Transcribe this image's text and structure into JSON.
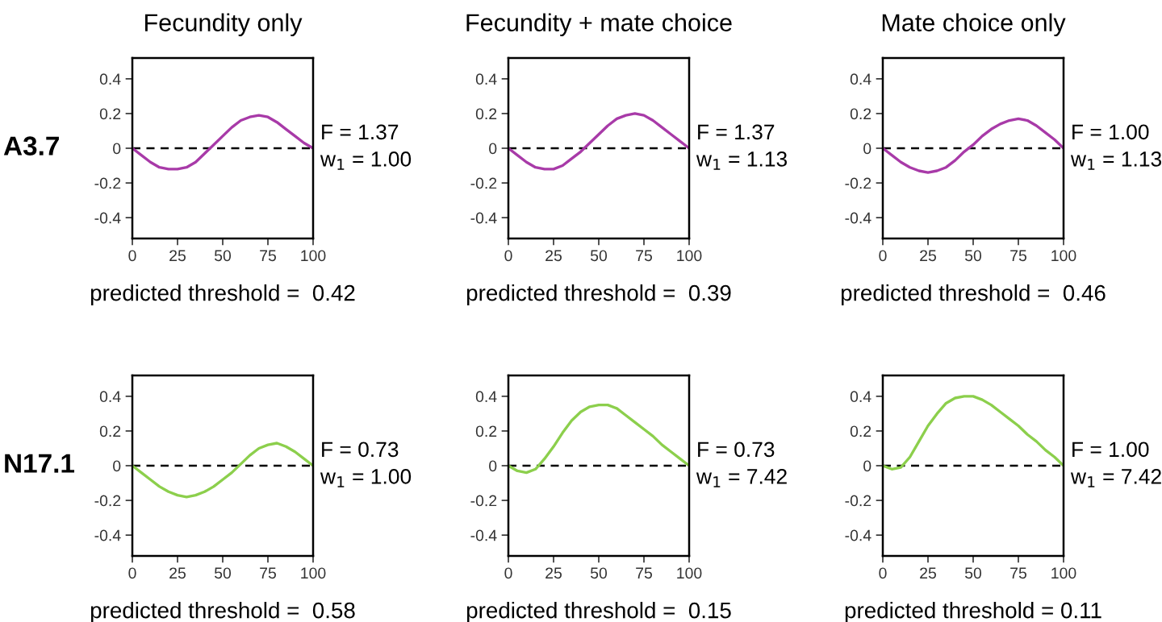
{
  "chart_data": [
    {
      "type": "line",
      "title": "Fecundity only",
      "ylabel": "A3.7",
      "xlabel": "predicted threshold =  0.42",
      "annotations": [
        "F = 1.37",
        "w$_{1}$ = 1.00"
      ],
      "x": [
        0,
        5,
        10,
        15,
        20,
        25,
        30,
        35,
        40,
        45,
        50,
        55,
        60,
        65,
        70,
        75,
        80,
        85,
        90,
        95,
        100
      ],
      "series": [
        {
          "color": "#a83aa8",
          "values": [
            0,
            -0.04,
            -0.08,
            -0.11,
            -0.12,
            -0.12,
            -0.11,
            -0.08,
            -0.03,
            0.02,
            0.07,
            0.12,
            0.16,
            0.18,
            0.19,
            0.18,
            0.15,
            0.11,
            0.07,
            0.03,
            0
          ]
        }
      ],
      "xlim": [
        0,
        100
      ],
      "xticks": [
        0,
        25,
        50,
        75,
        100
      ],
      "ylim": [
        -0.52,
        0.52
      ],
      "yticks": [
        -0.4,
        -0.2,
        0,
        0.2,
        0.4
      ],
      "ref_lines": [
        {
          "axis": "y",
          "value": 0,
          "color": "#000000",
          "line_style": "dashed"
        }
      ],
      "grid": false,
      "legend": false
    },
    {
      "type": "line",
      "title": "Fecundity + mate choice",
      "xlabel": "predicted threshold =  0.39",
      "annotations": [
        "F = 1.37",
        "w$_{1}$ = 1.13"
      ],
      "x": [
        0,
        5,
        10,
        15,
        20,
        25,
        30,
        35,
        40,
        45,
        50,
        55,
        60,
        65,
        70,
        75,
        80,
        85,
        90,
        95,
        100
      ],
      "series": [
        {
          "color": "#a83aa8",
          "values": [
            0,
            -0.04,
            -0.08,
            -0.11,
            -0.12,
            -0.12,
            -0.1,
            -0.06,
            -0.02,
            0.03,
            0.08,
            0.13,
            0.17,
            0.19,
            0.2,
            0.19,
            0.16,
            0.12,
            0.08,
            0.04,
            0
          ]
        }
      ],
      "xlim": [
        0,
        100
      ],
      "xticks": [
        0,
        25,
        50,
        75,
        100
      ],
      "ylim": [
        -0.52,
        0.52
      ],
      "yticks": [
        -0.4,
        -0.2,
        0,
        0.2,
        0.4
      ],
      "ref_lines": [
        {
          "axis": "y",
          "value": 0,
          "color": "#000000",
          "line_style": "dashed"
        }
      ],
      "grid": false,
      "legend": false
    },
    {
      "type": "line",
      "title": "Mate choice only",
      "xlabel": "predicted threshold =  0.46",
      "annotations": [
        "F = 1.00",
        "w$_{1}$ = 1.13"
      ],
      "x": [
        0,
        5,
        10,
        15,
        20,
        25,
        30,
        35,
        40,
        45,
        50,
        55,
        60,
        65,
        70,
        75,
        80,
        85,
        90,
        95,
        100
      ],
      "series": [
        {
          "color": "#a83aa8",
          "values": [
            0,
            -0.04,
            -0.08,
            -0.11,
            -0.13,
            -0.14,
            -0.13,
            -0.11,
            -0.07,
            -0.02,
            0.02,
            0.07,
            0.11,
            0.14,
            0.16,
            0.17,
            0.16,
            0.13,
            0.09,
            0.05,
            0
          ]
        }
      ],
      "xlim": [
        0,
        100
      ],
      "xticks": [
        0,
        25,
        50,
        75,
        100
      ],
      "ylim": [
        -0.52,
        0.52
      ],
      "yticks": [
        -0.4,
        -0.2,
        0,
        0.2,
        0.4
      ],
      "ref_lines": [
        {
          "axis": "y",
          "value": 0,
          "color": "#000000",
          "line_style": "dashed"
        }
      ],
      "grid": false,
      "legend": false
    },
    {
      "type": "line",
      "ylabel": "N17.1",
      "xlabel": "predicted threshold =  0.58",
      "annotations": [
        "F = 0.73",
        "w$_{1}$ = 1.00"
      ],
      "x": [
        0,
        5,
        10,
        15,
        20,
        25,
        30,
        35,
        40,
        45,
        50,
        55,
        60,
        65,
        70,
        75,
        80,
        85,
        90,
        95,
        100
      ],
      "series": [
        {
          "color": "#8ccf4c",
          "values": [
            0,
            -0.04,
            -0.08,
            -0.12,
            -0.15,
            -0.17,
            -0.18,
            -0.17,
            -0.15,
            -0.12,
            -0.08,
            -0.04,
            0.01,
            0.06,
            0.1,
            0.12,
            0.13,
            0.11,
            0.08,
            0.04,
            0
          ]
        }
      ],
      "xlim": [
        0,
        100
      ],
      "xticks": [
        0,
        25,
        50,
        75,
        100
      ],
      "ylim": [
        -0.52,
        0.52
      ],
      "yticks": [
        -0.4,
        -0.2,
        0,
        0.2,
        0.4
      ],
      "ref_lines": [
        {
          "axis": "y",
          "value": 0,
          "color": "#000000",
          "line_style": "dashed"
        }
      ],
      "grid": false,
      "legend": false
    },
    {
      "type": "line",
      "xlabel": "predicted threshold =  0.15",
      "annotations": [
        "F = 0.73",
        "w$_{1}$ = 7.42"
      ],
      "x": [
        0,
        5,
        10,
        15,
        20,
        25,
        30,
        35,
        40,
        45,
        50,
        55,
        60,
        65,
        70,
        75,
        80,
        85,
        90,
        95,
        100
      ],
      "series": [
        {
          "color": "#8ccf4c",
          "values": [
            0,
            -0.03,
            -0.04,
            -0.02,
            0.04,
            0.11,
            0.19,
            0.26,
            0.31,
            0.34,
            0.35,
            0.35,
            0.33,
            0.29,
            0.25,
            0.21,
            0.17,
            0.12,
            0.08,
            0.04,
            0
          ]
        }
      ],
      "xlim": [
        0,
        100
      ],
      "xticks": [
        0,
        25,
        50,
        75,
        100
      ],
      "ylim": [
        -0.52,
        0.52
      ],
      "yticks": [
        -0.4,
        -0.2,
        0,
        0.2,
        0.4
      ],
      "ref_lines": [
        {
          "axis": "y",
          "value": 0,
          "color": "#000000",
          "line_style": "dashed"
        }
      ],
      "grid": false,
      "legend": false
    },
    {
      "type": "line",
      "xlabel": "predicted threshold = 0.11",
      "annotations": [
        "F = 1.00",
        "w$_{1}$ = 7.42"
      ],
      "x": [
        0,
        5,
        10,
        15,
        20,
        25,
        30,
        35,
        40,
        45,
        50,
        55,
        60,
        65,
        70,
        75,
        80,
        85,
        90,
        95,
        100
      ],
      "series": [
        {
          "color": "#8ccf4c",
          "values": [
            0,
            -0.02,
            -0.01,
            0.05,
            0.14,
            0.23,
            0.3,
            0.36,
            0.39,
            0.4,
            0.4,
            0.38,
            0.35,
            0.31,
            0.27,
            0.23,
            0.18,
            0.14,
            0.09,
            0.05,
            0
          ]
        }
      ],
      "xlim": [
        0,
        100
      ],
      "xticks": [
        0,
        25,
        50,
        75,
        100
      ],
      "ylim": [
        -0.52,
        0.52
      ],
      "yticks": [
        -0.4,
        -0.2,
        0,
        0.2,
        0.4
      ],
      "ref_lines": [
        {
          "axis": "y",
          "value": 0,
          "color": "#000000",
          "line_style": "dashed"
        }
      ],
      "grid": false,
      "legend": false
    }
  ]
}
